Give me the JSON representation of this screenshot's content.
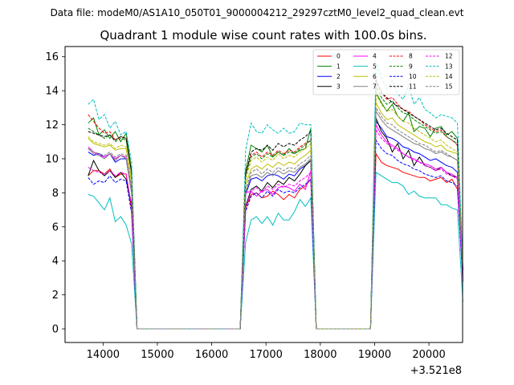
{
  "header": {
    "data_file": "Data file: modeM0/AS1A10_050T01_9000004212_29297cztM0_level2_quad_clean.evt"
  },
  "chart_data": {
    "type": "line",
    "title": "Quadrant 1 module wise count rates with 100.0s bins.",
    "xlabel": "",
    "ylabel": "",
    "x_offset_label": "+3.521e8",
    "xlim": [
      13300,
      20620
    ],
    "ylim": [
      -0.8,
      16.6
    ],
    "x_ticks": [
      14000,
      15000,
      16000,
      17000,
      18000,
      19000,
      20000
    ],
    "x_tick_labels": [
      "14000",
      "15000",
      "16000",
      "17000",
      "18000",
      "19000",
      "20000"
    ],
    "y_ticks": [
      0,
      2,
      4,
      6,
      8,
      10,
      12,
      14,
      16
    ],
    "y_tick_labels": [
      "0",
      "2",
      "4",
      "6",
      "8",
      "10",
      "12",
      "14",
      "16"
    ],
    "legend_position": "top-right",
    "series": [
      {
        "name": "0",
        "color": "#ff0000",
        "dash": "solid",
        "seg1": [
          9.0,
          9.3,
          9.3,
          9.1,
          9.4,
          8.9,
          9.1,
          9.1,
          7.0
        ],
        "seg2": [
          7.1,
          7.9,
          8.0,
          7.7,
          7.8,
          8.1,
          7.9,
          7.6,
          7.9,
          7.7,
          8.2,
          8.4,
          8.8
        ],
        "seg3": [
          10.3,
          9.8,
          9.6,
          9.5,
          9.4,
          9.2,
          9.1,
          9.0,
          8.9,
          8.9,
          8.7,
          8.8,
          8.9,
          8.6,
          8.8,
          8.2,
          3.2
        ]
      },
      {
        "name": "1",
        "color": "#008000",
        "dash": "solid",
        "seg1": [
          12.1,
          12.4,
          11.4,
          11.7,
          11.2,
          11.6,
          11.0,
          11.5,
          9.3
        ],
        "seg2": [
          9.3,
          10.8,
          10.6,
          10.4,
          10.8,
          10.1,
          10.4,
          10.2,
          10.6,
          10.3,
          10.5,
          10.6,
          11.8
        ],
        "seg3": [
          13.9,
          13.3,
          12.8,
          13.2,
          12.5,
          12.2,
          12.7,
          11.6,
          11.9,
          11.8,
          11.3,
          11.8,
          11.9,
          11.4,
          11.6,
          11.2,
          3.3
        ]
      },
      {
        "name": "2",
        "color": "#0000ff",
        "dash": "solid",
        "seg1": [
          10.4,
          10.2,
          10.3,
          10.1,
          10.3,
          9.8,
          10.0,
          10.0,
          8.0
        ],
        "seg2": [
          7.9,
          8.8,
          8.9,
          8.7,
          9.0,
          9.1,
          9.0,
          8.8,
          9.1,
          9.0,
          9.4,
          9.6,
          9.9
        ],
        "seg3": [
          12.2,
          11.8,
          11.3,
          11.2,
          11.0,
          10.7,
          10.6,
          10.4,
          10.3,
          10.1,
          9.9,
          10.0,
          9.8,
          9.6,
          9.5,
          9.2,
          3.0
        ]
      },
      {
        "name": "3",
        "color": "#000000",
        "dash": "solid",
        "seg1": [
          9.0,
          9.9,
          9.3,
          9.0,
          9.3,
          8.9,
          9.2,
          8.8,
          7.3
        ],
        "seg2": [
          7.2,
          8.2,
          8.4,
          8.1,
          8.6,
          8.3,
          8.7,
          8.5,
          8.9,
          8.7,
          9.1,
          9.6,
          9.9
        ],
        "seg3": [
          12.4,
          11.6,
          11.2,
          10.4,
          10.9,
          10.0,
          10.5,
          9.6,
          10.1,
          9.6,
          9.5,
          9.3,
          9.5,
          9.2,
          9.0,
          8.9,
          2.8
        ]
      },
      {
        "name": "4",
        "color": "#ff00ff",
        "dash": "solid",
        "seg1": [
          10.7,
          10.4,
          10.2,
          10.1,
          10.3,
          10.0,
          10.2,
          10.1,
          8.1
        ],
        "seg2": [
          8.0,
          8.1,
          7.8,
          8.1,
          8.2,
          7.9,
          8.3,
          8.4,
          8.3,
          8.1,
          8.5,
          8.2,
          9.3
        ],
        "seg3": [
          12.0,
          11.4,
          11.0,
          10.8,
          10.6,
          10.3,
          10.1,
          10.0,
          9.8,
          9.7,
          9.6,
          9.4,
          9.5,
          9.2,
          9.1,
          8.9,
          2.9
        ]
      },
      {
        "name": "5",
        "color": "#00bfbf",
        "dash": "solid",
        "seg1": [
          7.9,
          7.8,
          7.4,
          7.0,
          7.7,
          6.3,
          6.6,
          6.1,
          5.0
        ],
        "seg2": [
          5.1,
          6.4,
          6.6,
          6.2,
          6.6,
          6.1,
          6.8,
          6.4,
          6.4,
          6.9,
          7.6,
          7.2,
          7.7
        ],
        "seg3": [
          9.2,
          9.0,
          8.8,
          8.6,
          8.6,
          8.4,
          7.9,
          8.1,
          7.8,
          7.7,
          7.7,
          7.7,
          7.3,
          7.3,
          7.1,
          7.0,
          1.6
        ]
      },
      {
        "name": "6",
        "color": "#bfbf00",
        "dash": "solid",
        "seg1": [
          11.2,
          10.9,
          10.8,
          10.7,
          10.8,
          10.5,
          10.6,
          10.6,
          8.6
        ],
        "seg2": [
          8.5,
          9.4,
          9.6,
          9.4,
          9.7,
          9.5,
          9.8,
          9.6,
          9.8,
          9.7,
          10.0,
          10.2,
          10.5
        ],
        "seg3": [
          13.3,
          12.7,
          12.3,
          12.4,
          12.0,
          11.8,
          11.6,
          11.4,
          11.2,
          11.0,
          10.9,
          10.7,
          10.8,
          10.5,
          10.4,
          10.3,
          3.3
        ]
      },
      {
        "name": "7",
        "color": "#808080",
        "dash": "solid",
        "seg1": [
          10.6,
          10.3,
          10.2,
          10.0,
          10.3,
          9.9,
          10.2,
          10.0,
          8.0
        ],
        "seg2": [
          8.0,
          9.0,
          9.1,
          8.9,
          9.2,
          9.0,
          9.3,
          9.1,
          9.3,
          9.2,
          9.5,
          9.7,
          10.0
        ],
        "seg3": [
          12.8,
          12.3,
          11.9,
          11.7,
          11.5,
          11.3,
          11.1,
          10.9,
          10.8,
          10.6,
          10.5,
          10.3,
          10.4,
          10.2,
          10.1,
          9.9,
          3.1
        ]
      },
      {
        "name": "8",
        "color": "#ff0000",
        "dash": "dashed",
        "seg1": [
          12.6,
          12.2,
          11.8,
          11.5,
          11.6,
          11.1,
          11.3,
          11.2,
          9.2
        ],
        "seg2": [
          9.1,
          10.2,
          10.4,
          10.1,
          10.4,
          10.2,
          10.5,
          10.3,
          10.5,
          10.4,
          10.7,
          10.9,
          11.1
        ],
        "seg3": [
          14.7,
          13.9,
          13.5,
          13.6,
          13.2,
          12.9,
          12.8,
          12.5,
          12.3,
          12.0,
          11.8,
          11.6,
          11.7,
          11.3,
          11.1,
          10.8,
          3.5
        ]
      },
      {
        "name": "9",
        "color": "#008000",
        "dash": "dashed",
        "seg1": [
          11.8,
          11.6,
          11.4,
          11.2,
          11.4,
          11.0,
          11.2,
          11.1,
          9.1
        ],
        "seg2": [
          9.0,
          10.1,
          10.3,
          10.0,
          10.3,
          10.1,
          10.4,
          10.2,
          10.4,
          10.3,
          10.6,
          10.8,
          11.1
        ],
        "seg3": [
          14.3,
          13.6,
          13.2,
          13.4,
          13.0,
          12.7,
          12.6,
          12.3,
          12.1,
          11.9,
          11.7,
          11.5,
          11.6,
          11.3,
          11.1,
          10.9,
          3.4
        ]
      },
      {
        "name": "10",
        "color": "#0000ff",
        "dash": "dashed",
        "seg1": [
          8.9,
          8.5,
          8.7,
          8.6,
          9.0,
          8.6,
          8.8,
          8.7,
          6.8
        ],
        "seg2": [
          6.9,
          7.8,
          8.0,
          7.7,
          8.1,
          7.8,
          8.2,
          8.0,
          8.1,
          8.0,
          8.3,
          8.5,
          8.8
        ],
        "seg3": [
          11.1,
          10.6,
          10.3,
          10.2,
          9.9,
          9.7,
          9.6,
          9.4,
          9.3,
          9.1,
          9.0,
          8.9,
          9.0,
          8.7,
          8.6,
          8.4,
          2.7
        ]
      },
      {
        "name": "11",
        "color": "#000000",
        "dash": "dashed",
        "seg1": [
          11.6,
          11.5,
          11.4,
          11.3,
          11.4,
          11.1,
          11.3,
          11.2,
          9.2
        ],
        "seg2": [
          9.1,
          10.4,
          10.6,
          10.5,
          10.8,
          10.5,
          10.9,
          10.7,
          10.9,
          10.8,
          11.1,
          11.3,
          11.6
        ],
        "seg3": [
          14.6,
          13.9,
          13.6,
          13.3,
          13.1,
          12.9,
          12.7,
          12.5,
          12.3,
          12.1,
          11.9,
          11.7,
          11.8,
          11.5,
          11.3,
          11.1,
          3.5
        ]
      },
      {
        "name": "12",
        "color": "#ff00ff",
        "dash": "dashed",
        "seg1": [
          9.5,
          9.3,
          9.2,
          9.1,
          9.3,
          9.0,
          9.2,
          9.1,
          7.2
        ],
        "seg2": [
          7.1,
          8.1,
          8.3,
          8.0,
          8.4,
          8.2,
          8.5,
          8.3,
          8.5,
          8.4,
          8.7,
          8.9,
          9.2
        ],
        "seg3": [
          11.7,
          11.2,
          10.9,
          10.7,
          10.5,
          10.3,
          10.1,
          9.9,
          9.8,
          9.6,
          9.5,
          9.3,
          9.4,
          9.1,
          9.0,
          8.8,
          2.8
        ]
      },
      {
        "name": "13",
        "color": "#00bfbf",
        "dash": "dashed",
        "seg1": [
          13.2,
          13.5,
          12.3,
          12.6,
          11.8,
          12.2,
          11.4,
          11.6,
          9.8
        ],
        "seg2": [
          10.5,
          12.1,
          11.6,
          11.5,
          12.0,
          11.7,
          11.5,
          11.8,
          11.5,
          11.6,
          12.1,
          12.0,
          12.0
        ],
        "seg3": [
          15.6,
          14.8,
          14.1,
          14.6,
          13.8,
          13.5,
          14.3,
          13.2,
          13.6,
          12.9,
          12.7,
          12.4,
          12.6,
          12.5,
          12.4,
          12.1,
          3.6
        ]
      },
      {
        "name": "14",
        "color": "#bfbf00",
        "dash": "dashed",
        "seg1": [
          11.3,
          11.0,
          10.9,
          10.8,
          10.9,
          10.6,
          10.8,
          10.7,
          8.8
        ],
        "seg2": [
          8.8,
          9.9,
          10.1,
          9.8,
          10.1,
          9.9,
          10.3,
          10.0,
          10.2,
          10.1,
          10.4,
          10.6,
          10.9
        ],
        "seg3": [
          13.8,
          13.2,
          12.8,
          12.9,
          12.5,
          12.2,
          12.1,
          11.8,
          11.6,
          11.4,
          11.2,
          11.0,
          11.1,
          10.8,
          10.6,
          10.4,
          3.3
        ]
      },
      {
        "name": "15",
        "color": "#808080",
        "dash": "dashed",
        "seg1": [
          10.6,
          10.4,
          10.3,
          10.2,
          10.4,
          10.1,
          10.3,
          10.2,
          8.3
        ],
        "seg2": [
          8.2,
          9.2,
          9.4,
          9.1,
          9.4,
          9.2,
          9.5,
          9.3,
          9.5,
          9.4,
          9.7,
          9.9,
          10.2
        ],
        "seg3": [
          13.0,
          12.5,
          12.1,
          12.0,
          11.7,
          11.5,
          11.3,
          11.1,
          10.9,
          10.8,
          10.6,
          10.4,
          10.5,
          10.3,
          10.1,
          9.9,
          3.1
        ]
      }
    ]
  }
}
